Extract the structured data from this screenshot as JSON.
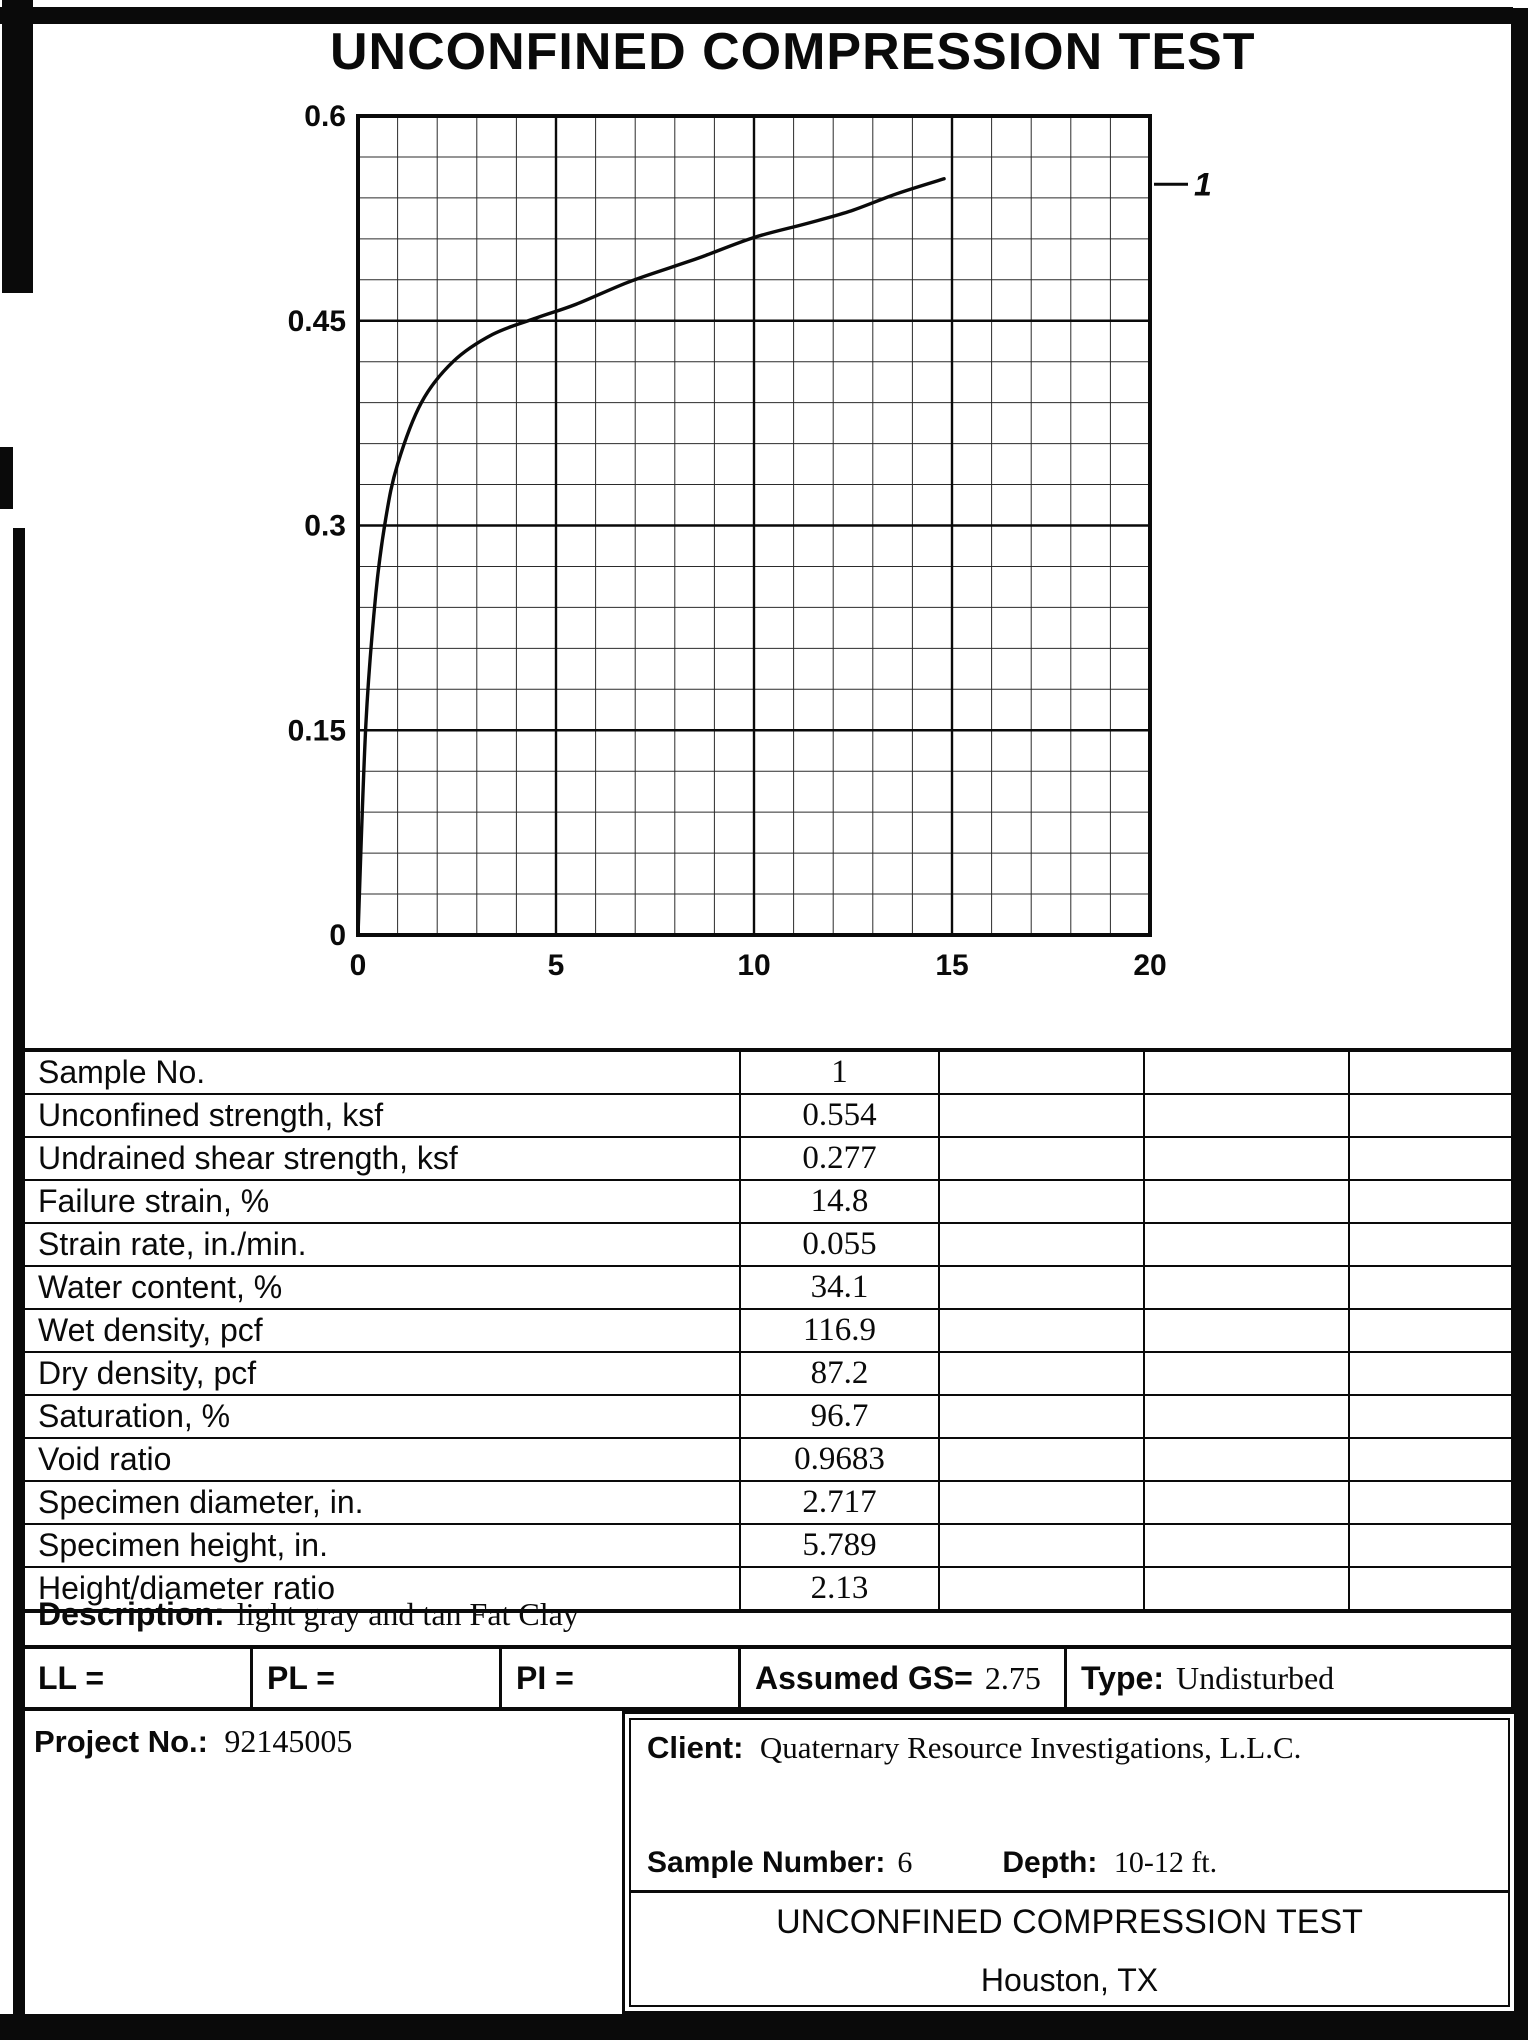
{
  "page": {
    "title": "UNCONFINED COMPRESSION TEST"
  },
  "chart_data": {
    "type": "line",
    "title": "",
    "xlabel": "",
    "ylabel": "",
    "xlim": [
      0,
      20
    ],
    "ylim": [
      0,
      0.6
    ],
    "x_ticks": [
      0,
      5,
      10,
      15,
      20
    ],
    "x_tick_labels": [
      "0",
      "5",
      "10",
      "15",
      "20"
    ],
    "y_ticks": [
      0.6,
      0.45,
      0.3,
      0.15,
      0
    ],
    "y_tick_labels": [
      "0.6",
      "0.45",
      "0.3",
      "0.15",
      "0"
    ],
    "x_minor_step": 1,
    "y_minor_step": 0.03,
    "grid": true,
    "legend": {
      "label": "1",
      "position": "right-outside",
      "y": 0.55
    },
    "series": [
      {
        "name": "1",
        "x": [
          0,
          0.2,
          0.45,
          0.7,
          1.0,
          1.6,
          2.4,
          3.4,
          4.5,
          5.5,
          6.8,
          8.0,
          8.7,
          10.0,
          11.3,
          12.4,
          13.6,
          14.8
        ],
        "y": [
          0,
          0.155,
          0.25,
          0.305,
          0.345,
          0.39,
          0.42,
          0.44,
          0.452,
          0.462,
          0.478,
          0.49,
          0.497,
          0.511,
          0.521,
          0.53,
          0.543,
          0.554
        ]
      }
    ]
  },
  "results_table": {
    "rows": [
      {
        "label": "Sample No.",
        "values": [
          "1",
          "",
          "",
          ""
        ]
      },
      {
        "label": "Unconfined strength, ksf",
        "values": [
          "0.554",
          "",
          "",
          ""
        ]
      },
      {
        "label": "Undrained shear strength, ksf",
        "values": [
          "0.277",
          "",
          "",
          ""
        ]
      },
      {
        "label": "Failure strain, %",
        "values": [
          "14.8",
          "",
          "",
          ""
        ]
      },
      {
        "label": "Strain rate, in./min.",
        "values": [
          "0.055",
          "",
          "",
          ""
        ]
      },
      {
        "label": "Water content, %",
        "values": [
          "34.1",
          "",
          "",
          ""
        ]
      },
      {
        "label": "Wet density, pcf",
        "values": [
          "116.9",
          "",
          "",
          ""
        ]
      },
      {
        "label": "Dry density, pcf",
        "values": [
          "87.2",
          "",
          "",
          ""
        ]
      },
      {
        "label": "Saturation, %",
        "values": [
          "96.7",
          "",
          "",
          ""
        ]
      },
      {
        "label": "Void ratio",
        "values": [
          "0.9683",
          "",
          "",
          ""
        ]
      },
      {
        "label": "Specimen diameter, in.",
        "values": [
          "2.717",
          "",
          "",
          ""
        ]
      },
      {
        "label": "Specimen height, in.",
        "values": [
          "5.789",
          "",
          "",
          ""
        ]
      },
      {
        "label": "Height/diameter ratio",
        "values": [
          "2.13",
          "",
          "",
          ""
        ]
      }
    ]
  },
  "description": {
    "label": "Description:",
    "value": "light gray and tan Fat Clay"
  },
  "limits_row": {
    "ll_label": "LL =",
    "pl_label": "PL =",
    "pi_label": "PI =",
    "gs_label": "Assumed GS=",
    "gs_value": "2.75",
    "type_label": "Type:",
    "type_value": "Undisturbed"
  },
  "footer": {
    "project_label": "Project No.:",
    "project_value": "92145005",
    "client_label": "Client:",
    "client_value": "Quaternary Resource Investigations, L.L.C.",
    "sample_label": "Sample Number:",
    "sample_value": "6",
    "depth_label": "Depth:",
    "depth_value": "10-12 ft.",
    "doc_title": "UNCONFINED COMPRESSION TEST",
    "location": "Houston, TX"
  }
}
